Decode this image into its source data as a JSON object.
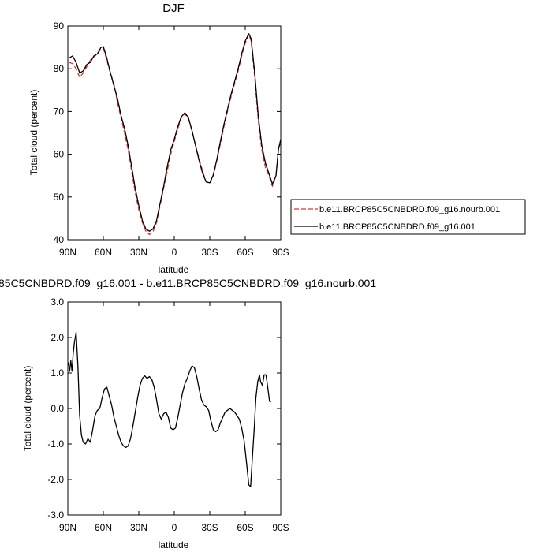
{
  "chart_data": [
    {
      "type": "line",
      "title": "DJF",
      "xlabel": "latitude",
      "ylabel": "Total cloud (percent)",
      "xlim": [
        90,
        -90
      ],
      "ylim": [
        40,
        90
      ],
      "xticks": [
        90,
        60,
        30,
        0,
        -30,
        -60,
        -90
      ],
      "xtick_labels": [
        "90N",
        "60N",
        "30N",
        "0",
        "30S",
        "60S",
        "90S"
      ],
      "yticks": [
        40,
        50,
        60,
        70,
        80,
        90
      ],
      "ytick_labels": [
        "40",
        "50",
        "60",
        "70",
        "80",
        "90"
      ],
      "grid": false,
      "legend": "right",
      "series": [
        {
          "name": "b.e11.BRCP85C5CNBDRD.f09_g16.nourb.001",
          "color": "#e8302b",
          "dash": "dashed",
          "points": [
            [
              89,
              81.5
            ],
            [
              86,
              81.2
            ],
            [
              83,
              80
            ],
            [
              80,
              78
            ],
            [
              77,
              79
            ],
            [
              74,
              80.5
            ],
            [
              71,
              82
            ],
            [
              68,
              82.8
            ],
            [
              65,
              83.5
            ],
            [
              62,
              84.6
            ],
            [
              60,
              84.8
            ],
            [
              57,
              82
            ],
            [
              54,
              79
            ],
            [
              51,
              76.5
            ],
            [
              48,
              72
            ],
            [
              45,
              68.5
            ],
            [
              42,
              65
            ],
            [
              39,
              61
            ],
            [
              36,
              56
            ],
            [
              33,
              51
            ],
            [
              30,
              47
            ],
            [
              27,
              44
            ],
            [
              24,
              42
            ],
            [
              21,
              41.2
            ],
            [
              18,
              41.8
            ],
            [
              15,
              44
            ],
            [
              12,
              48
            ],
            [
              9,
              52
            ],
            [
              6,
              56
            ],
            [
              3,
              60
            ],
            [
              0,
              63
            ],
            [
              -3,
              66
            ],
            [
              -6,
              68.5
            ],
            [
              -9,
              69.5
            ],
            [
              -12,
              68.2
            ],
            [
              -15,
              65.5
            ],
            [
              -18,
              62
            ],
            [
              -21,
              59
            ],
            [
              -24,
              56
            ],
            [
              -27,
              53.5
            ],
            [
              -30,
              53.2
            ],
            [
              -33,
              55
            ],
            [
              -36,
              58.5
            ],
            [
              -39,
              62.5
            ],
            [
              -42,
              66.5
            ],
            [
              -45,
              70
            ],
            [
              -48,
              73.5
            ],
            [
              -51,
              76.5
            ],
            [
              -54,
              79.5
            ],
            [
              -57,
              83
            ],
            [
              -60,
              86
            ],
            [
              -63,
              88
            ],
            [
              -65,
              86.5
            ],
            [
              -68,
              78
            ],
            [
              -71,
              68
            ],
            [
              -74,
              61
            ],
            [
              -77,
              57
            ],
            [
              -80,
              55
            ],
            [
              -83,
              52.5
            ],
            [
              -86,
              55
            ],
            [
              -88,
              61
            ],
            [
              -90,
              63
            ]
          ]
        },
        {
          "name": "b.e11.BRCP85C5CNBDRD.f09_g16.001",
          "color": "#000000",
          "dash": "solid",
          "points": [
            [
              89,
              82.5
            ],
            [
              86,
              83
            ],
            [
              83,
              81.5
            ],
            [
              80,
              79
            ],
            [
              77,
              79.5
            ],
            [
              74,
              81
            ],
            [
              71,
              81.5
            ],
            [
              68,
              83
            ],
            [
              65,
              83.5
            ],
            [
              62,
              85
            ],
            [
              60,
              85.2
            ],
            [
              57,
              82.5
            ],
            [
              54,
              79
            ],
            [
              51,
              76
            ],
            [
              48,
              73
            ],
            [
              45,
              69
            ],
            [
              42,
              66
            ],
            [
              39,
              62
            ],
            [
              36,
              57
            ],
            [
              33,
              52
            ],
            [
              30,
              48
            ],
            [
              27,
              44.5
            ],
            [
              24,
              42.5
            ],
            [
              21,
              42
            ],
            [
              18,
              42.5
            ],
            [
              15,
              44.5
            ],
            [
              12,
              48.5
            ],
            [
              9,
              52.5
            ],
            [
              6,
              57
            ],
            [
              3,
              61
            ],
            [
              0,
              63.5
            ],
            [
              -3,
              66.5
            ],
            [
              -6,
              68.8
            ],
            [
              -9,
              69.7
            ],
            [
              -12,
              68.5
            ],
            [
              -15,
              65.5
            ],
            [
              -18,
              62
            ],
            [
              -21,
              58.5
            ],
            [
              -24,
              55.5
            ],
            [
              -27,
              53.5
            ],
            [
              -30,
              53.3
            ],
            [
              -33,
              55.2
            ],
            [
              -36,
              58.8
            ],
            [
              -39,
              63
            ],
            [
              -42,
              67
            ],
            [
              -45,
              70.5
            ],
            [
              -48,
              74
            ],
            [
              -51,
              77
            ],
            [
              -54,
              80
            ],
            [
              -57,
              83.5
            ],
            [
              -60,
              86.5
            ],
            [
              -63,
              88.2
            ],
            [
              -65,
              87
            ],
            [
              -68,
              79
            ],
            [
              -71,
              69
            ],
            [
              -74,
              62
            ],
            [
              -77,
              58
            ],
            [
              -80,
              55.5
            ],
            [
              -83,
              53
            ],
            [
              -86,
              55
            ],
            [
              -88,
              61
            ],
            [
              -90,
              63.5
            ]
          ]
        }
      ]
    },
    {
      "type": "line",
      "title": "85C5CNBDRD.f09_g16.001 - b.e11.BRCP85C5CNBDRD.f09_g16.nourb.001",
      "xlabel": "latitude",
      "ylabel": "Total cloud (percent)",
      "xlim": [
        90,
        -90
      ],
      "ylim": [
        -3,
        3
      ],
      "xticks": [
        90,
        60,
        30,
        0,
        -30,
        -60,
        -90
      ],
      "xtick_labels": [
        "90N",
        "60N",
        "30N",
        "0",
        "30S",
        "60S",
        "90S"
      ],
      "yticks": [
        -3,
        -2,
        -1,
        0,
        1,
        2,
        3
      ],
      "ytick_labels": [
        "-3.0",
        "-2.0",
        "-1.0",
        "0.0",
        "1.0",
        "2.0",
        "3.0"
      ],
      "grid": false,
      "series": [
        {
          "color": "#000000",
          "dash": "solid",
          "points": [
            [
              89.5,
              1.3
            ],
            [
              88.5,
              1.05
            ],
            [
              87.5,
              1.35
            ],
            [
              86.5,
              1.05
            ],
            [
              85.5,
              1.55
            ],
            [
              84.5,
              1.85
            ],
            [
              83,
              2.15
            ],
            [
              81.5,
              1.2
            ],
            [
              80,
              -0.2
            ],
            [
              78.5,
              -0.75
            ],
            [
              77,
              -0.95
            ],
            [
              75,
              -1.0
            ],
            [
              73,
              -0.85
            ],
            [
              71,
              -0.95
            ],
            [
              69,
              -0.6
            ],
            [
              67,
              -0.2
            ],
            [
              65,
              -0.05
            ],
            [
              63,
              0.0
            ],
            [
              61,
              0.3
            ],
            [
              59,
              0.55
            ],
            [
              57,
              0.6
            ],
            [
              55,
              0.35
            ],
            [
              53,
              0.1
            ],
            [
              51,
              -0.25
            ],
            [
              49,
              -0.5
            ],
            [
              47,
              -0.75
            ],
            [
              45,
              -0.95
            ],
            [
              43,
              -1.05
            ],
            [
              41,
              -1.1
            ],
            [
              39,
              -1.05
            ],
            [
              37,
              -0.85
            ],
            [
              35,
              -0.5
            ],
            [
              33,
              -0.1
            ],
            [
              31,
              0.3
            ],
            [
              29,
              0.65
            ],
            [
              27,
              0.85
            ],
            [
              25,
              0.92
            ],
            [
              23,
              0.85
            ],
            [
              21,
              0.9
            ],
            [
              19,
              0.82
            ],
            [
              17,
              0.6
            ],
            [
              15,
              0.25
            ],
            [
              13,
              -0.15
            ],
            [
              11,
              -0.3
            ],
            [
              9,
              -0.15
            ],
            [
              7,
              -0.1
            ],
            [
              5,
              -0.25
            ],
            [
              3,
              -0.55
            ],
            [
              1,
              -0.6
            ],
            [
              -1,
              -0.55
            ],
            [
              -3,
              -0.25
            ],
            [
              -5,
              0.1
            ],
            [
              -7,
              0.45
            ],
            [
              -9,
              0.7
            ],
            [
              -11,
              0.85
            ],
            [
              -13,
              1.05
            ],
            [
              -15,
              1.2
            ],
            [
              -17,
              1.15
            ],
            [
              -19,
              0.9
            ],
            [
              -21,
              0.55
            ],
            [
              -23,
              0.25
            ],
            [
              -25,
              0.1
            ],
            [
              -27,
              0.05
            ],
            [
              -29,
              -0.05
            ],
            [
              -31,
              -0.35
            ],
            [
              -33,
              -0.6
            ],
            [
              -35,
              -0.65
            ],
            [
              -37,
              -0.6
            ],
            [
              -39,
              -0.4
            ],
            [
              -41,
              -0.25
            ],
            [
              -43,
              -0.1
            ],
            [
              -45,
              -0.05
            ],
            [
              -47,
              0.0
            ],
            [
              -49,
              -0.05
            ],
            [
              -51,
              -0.1
            ],
            [
              -53,
              -0.2
            ],
            [
              -55,
              -0.3
            ],
            [
              -57,
              -0.55
            ],
            [
              -59,
              -0.9
            ],
            [
              -61,
              -1.5
            ],
            [
              -63,
              -2.15
            ],
            [
              -64.5,
              -2.2
            ],
            [
              -66,
              -1.4
            ],
            [
              -67.5,
              -0.6
            ],
            [
              -69,
              0.3
            ],
            [
              -70.5,
              0.75
            ],
            [
              -72,
              0.95
            ],
            [
              -73,
              0.75
            ],
            [
              -74.5,
              0.65
            ],
            [
              -76,
              0.95
            ],
            [
              -77.5,
              0.95
            ],
            [
              -79,
              0.6
            ],
            [
              -80.5,
              0.2
            ],
            [
              -82,
              0.2
            ]
          ]
        }
      ]
    }
  ]
}
